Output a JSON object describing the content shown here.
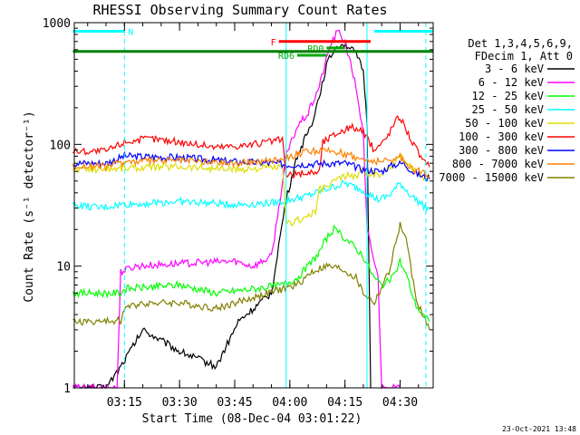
{
  "chart_data": {
    "type": "line",
    "title": "RHESSI Observing Summary Count Rates",
    "xlabel": "Start Time (08-Dec-04 03:01:22)",
    "ylabel": "Count Rate (s⁻¹ detector⁻¹)",
    "y_scale": "log",
    "ylim": [
      1,
      1000
    ],
    "xlim": [
      "03:01:22",
      "04:39:00"
    ],
    "x_ticks": [
      "03:15",
      "03:30",
      "03:45",
      "04:00",
      "04:15",
      "04:30"
    ],
    "y_ticks": [
      "1",
      "10",
      "100",
      "1000"
    ],
    "legend_header": [
      "Det 1,3,4,5,6,9,",
      "FDecim 1, Att 0"
    ],
    "legend_placement": "right",
    "footer": "23-Oct-2021 13:48",
    "series": [
      {
        "name": "3 - 6 keV",
        "color": "#000000",
        "points": [
          [
            "03:01",
            1
          ],
          [
            "03:10",
            1
          ],
          [
            "03:14",
            1.5
          ],
          [
            "03:20",
            3
          ],
          [
            "03:30",
            2
          ],
          [
            "03:40",
            1.5
          ],
          [
            "03:46",
            3.5
          ],
          [
            "03:52",
            5
          ],
          [
            "03:55",
            6
          ],
          [
            "03:57",
            15
          ],
          [
            "03:59",
            35
          ],
          [
            "04:02",
            80
          ],
          [
            "04:06",
            150
          ],
          [
            "04:08",
            250
          ],
          [
            "04:10",
            450
          ],
          [
            "04:12",
            600
          ],
          [
            "04:14",
            680
          ],
          [
            "04:16",
            640
          ],
          [
            "04:18",
            550
          ],
          [
            "04:20",
            400
          ],
          [
            "04:21",
            150
          ],
          [
            "04:22",
            1
          ]
        ]
      },
      {
        "name": "6 - 12 keV",
        "color": "#ff00ff",
        "points": [
          [
            "03:01",
            1
          ],
          [
            "03:13",
            1
          ],
          [
            "03:14",
            9
          ],
          [
            "03:18",
            10
          ],
          [
            "03:30",
            10.5
          ],
          [
            "03:45",
            11
          ],
          [
            "03:50",
            10
          ],
          [
            "03:55",
            12
          ],
          [
            "03:57",
            30
          ],
          [
            "03:59",
            80
          ],
          [
            "04:02",
            140
          ],
          [
            "04:05",
            180
          ],
          [
            "04:08",
            300
          ],
          [
            "04:11",
            650
          ],
          [
            "04:13",
            850
          ],
          [
            "04:15",
            700
          ],
          [
            "04:18",
            300
          ],
          [
            "04:20",
            120
          ],
          [
            "04:21",
            20
          ],
          [
            "04:24",
            8
          ],
          [
            "04:25",
            1
          ],
          [
            "04:30",
            1
          ]
        ]
      },
      {
        "name": "12 - 25 keV",
        "color": "#00ff00",
        "points": [
          [
            "03:01",
            6
          ],
          [
            "03:14",
            6
          ],
          [
            "03:15",
            6.5
          ],
          [
            "03:30",
            7
          ],
          [
            "03:40",
            6
          ],
          [
            "03:50",
            6.5
          ],
          [
            "03:58",
            7
          ],
          [
            "04:02",
            8
          ],
          [
            "04:05",
            10
          ],
          [
            "04:08",
            13
          ],
          [
            "04:10",
            17
          ],
          [
            "04:12",
            20
          ],
          [
            "04:15",
            17
          ],
          [
            "04:18",
            14
          ],
          [
            "04:20",
            12
          ],
          [
            "04:23",
            8
          ],
          [
            "04:25",
            7
          ],
          [
            "04:28",
            8
          ],
          [
            "04:30",
            11
          ],
          [
            "04:32",
            8
          ],
          [
            "04:34",
            5
          ],
          [
            "04:36",
            4
          ],
          [
            "04:38",
            3.5
          ]
        ]
      },
      {
        "name": "25 - 50 keV",
        "color": "#00ffff",
        "points": [
          [
            "03:01",
            32
          ],
          [
            "03:08",
            30
          ],
          [
            "03:14",
            32
          ],
          [
            "03:30",
            34
          ],
          [
            "03:45",
            32
          ],
          [
            "03:55",
            33
          ],
          [
            "04:00",
            35
          ],
          [
            "04:05",
            38
          ],
          [
            "04:10",
            43
          ],
          [
            "04:15",
            48
          ],
          [
            "04:20",
            42
          ],
          [
            "04:24",
            35
          ],
          [
            "04:27",
            38
          ],
          [
            "04:30",
            48
          ],
          [
            "04:33",
            38
          ],
          [
            "04:36",
            32
          ],
          [
            "04:38",
            29
          ]
        ]
      },
      {
        "name": "50 - 100 keV",
        "color": "#dddd00",
        "points": [
          [
            "03:01",
            62
          ],
          [
            "03:15",
            64
          ],
          [
            "03:30",
            66
          ],
          [
            "03:45",
            62
          ],
          [
            "03:58",
            65
          ],
          [
            "03:59",
            22
          ],
          [
            "04:04",
            25
          ],
          [
            "04:07",
            28
          ],
          [
            "04:08",
            42
          ],
          [
            "04:10",
            45
          ],
          [
            "04:12",
            50
          ],
          [
            "04:15",
            55
          ],
          [
            "04:18",
            55
          ],
          [
            "04:20",
            60
          ],
          [
            "04:24",
            55
          ],
          [
            "04:27",
            65
          ],
          [
            "04:30",
            80
          ],
          [
            "04:33",
            65
          ],
          [
            "04:36",
            55
          ],
          [
            "04:38",
            52
          ]
        ]
      },
      {
        "name": "100 - 300 keV",
        "color": "#ff0000",
        "points": [
          [
            "03:01",
            88
          ],
          [
            "03:10",
            88
          ],
          [
            "03:15",
            105
          ],
          [
            "03:22",
            112
          ],
          [
            "03:30",
            105
          ],
          [
            "03:40",
            95
          ],
          [
            "03:50",
            100
          ],
          [
            "03:58",
            110
          ],
          [
            "03:59",
            55
          ],
          [
            "04:04",
            58
          ],
          [
            "04:08",
            60
          ],
          [
            "04:09",
            105
          ],
          [
            "04:13",
            125
          ],
          [
            "04:17",
            140
          ],
          [
            "04:20",
            125
          ],
          [
            "04:23",
            90
          ],
          [
            "04:26",
            110
          ],
          [
            "04:29",
            160
          ],
          [
            "04:30",
            170
          ],
          [
            "04:33",
            110
          ],
          [
            "04:36",
            75
          ],
          [
            "04:38",
            65
          ]
        ]
      },
      {
        "name": "300 - 800 keV",
        "color": "#0000ff",
        "points": [
          [
            "03:01",
            70
          ],
          [
            "03:10",
            70
          ],
          [
            "03:15",
            80
          ],
          [
            "03:30",
            78
          ],
          [
            "03:45",
            72
          ],
          [
            "03:55",
            70
          ],
          [
            "04:00",
            68
          ],
          [
            "04:10",
            70
          ],
          [
            "04:15",
            70
          ],
          [
            "04:20",
            62
          ],
          [
            "04:25",
            60
          ],
          [
            "04:28",
            68
          ],
          [
            "04:31",
            70
          ],
          [
            "04:34",
            58
          ],
          [
            "04:38",
            52
          ]
        ]
      },
      {
        "name": "800 - 7000 keV",
        "color": "#ff8000",
        "points": [
          [
            "03:01",
            66
          ],
          [
            "03:10",
            66
          ],
          [
            "03:15",
            72
          ],
          [
            "03:30",
            74
          ],
          [
            "03:45",
            70
          ],
          [
            "03:55",
            74
          ],
          [
            "04:00",
            80
          ],
          [
            "04:05",
            88
          ],
          [
            "04:12",
            88
          ],
          [
            "04:16",
            82
          ],
          [
            "04:20",
            75
          ],
          [
            "04:25",
            72
          ],
          [
            "04:30",
            78
          ],
          [
            "04:34",
            62
          ],
          [
            "04:38",
            56
          ]
        ]
      },
      {
        "name": "7000 - 15000 keV",
        "color": "#808000",
        "points": [
          [
            "03:01",
            3.5
          ],
          [
            "03:10",
            3.5
          ],
          [
            "03:14",
            3.6
          ],
          [
            "03:15",
            4.5
          ],
          [
            "03:20",
            5
          ],
          [
            "03:30",
            5
          ],
          [
            "03:40",
            4.5
          ],
          [
            "03:50",
            5.5
          ],
          [
            "03:58",
            6.5
          ],
          [
            "04:02",
            7
          ],
          [
            "04:06",
            9
          ],
          [
            "04:10",
            10
          ],
          [
            "04:14",
            9.5
          ],
          [
            "04:18",
            8
          ],
          [
            "04:20",
            6
          ],
          [
            "04:23",
            5
          ],
          [
            "04:27",
            9
          ],
          [
            "04:30",
            22
          ],
          [
            "04:32",
            15
          ],
          [
            "04:34",
            6
          ],
          [
            "04:36",
            4
          ],
          [
            "04:38",
            3
          ]
        ]
      }
    ],
    "annotations": [
      {
        "label": "N",
        "color": "#00ffff",
        "segments": [
          [
            "03:01",
            "03:15"
          ],
          [
            "04:23",
            "04:39"
          ]
        ],
        "y": 850
      },
      {
        "label": "F",
        "color": "#ff0000",
        "segments": [
          [
            "03:57",
            "04:22"
          ]
        ],
        "y": 700
      },
      {
        "label": "RD0",
        "color": "#00aa00",
        "segments": [
          [
            "04:10",
            "04:15"
          ]
        ],
        "y": 620
      },
      {
        "label": "RD6",
        "color": "#00aa00",
        "segments": [
          [
            "04:02",
            "04:10"
          ]
        ],
        "y": 540
      },
      {
        "label": "",
        "color": "#008000",
        "segments": [
          [
            "03:01",
            "04:39"
          ]
        ],
        "y": 580
      }
    ],
    "vlines": [
      {
        "x": "03:15",
        "color": "#00ffff",
        "style": "dashed"
      },
      {
        "x": "03:59",
        "color": "#00ffff",
        "style": "solid"
      },
      {
        "x": "04:21",
        "color": "#00ffff",
        "style": "solid"
      },
      {
        "x": "04:37",
        "color": "#00ffff",
        "style": "dashed"
      }
    ]
  }
}
